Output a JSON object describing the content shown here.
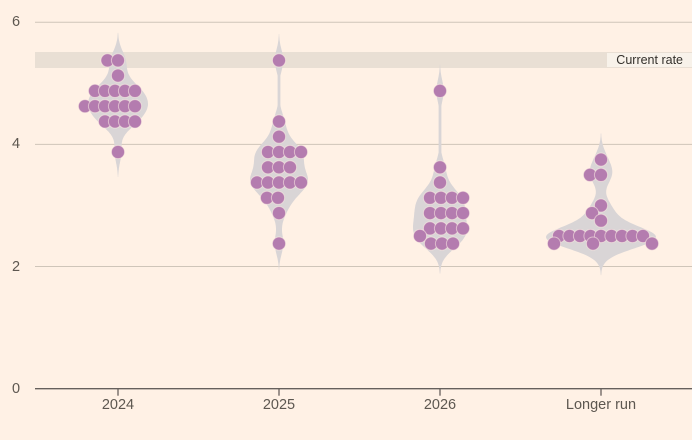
{
  "colors": {
    "background": "#fff1e5",
    "violin_fill": "#d9d5d6",
    "dot": "#b47caf",
    "dot_stroke": "rgba(255,241,229,0.55)",
    "gridline": "#cfc5b9",
    "axis_line": "#66605c",
    "tick_text": "#5d5750",
    "band_fill": "#e9dfd4",
    "band_label_bg": "#f8f2ea",
    "band_label_text": "#33302b"
  },
  "y_axis": {
    "min": 0,
    "max": 6,
    "ticks": [
      0,
      2,
      4,
      6
    ],
    "tick_labels": [
      "6",
      "4",
      "2",
      "0"
    ]
  },
  "current_rate": {
    "label": "Current rate",
    "band_from": 5.25,
    "band_to": 5.5
  },
  "chart_data": {
    "type": "scatter",
    "subtype": "violin-beeswarm",
    "title": "",
    "xlabel": "",
    "ylabel": "",
    "ylim": [
      0,
      6
    ],
    "grid": "horizontal",
    "categories": [
      "2024",
      "2025",
      "2026",
      "Longer run"
    ],
    "annotation": {
      "label": "Current rate",
      "from": 5.25,
      "to": 5.5
    },
    "groups": [
      {
        "label": "2024",
        "rows": [
          {
            "value": 5.375,
            "count": 2,
            "offsets": [
              -10.5,
              0
            ]
          },
          {
            "value": 5.125,
            "count": 1,
            "offsets": [
              0
            ]
          },
          {
            "value": 4.875,
            "count": 5,
            "offsets": [
              -23,
              -13,
              -3,
              7,
              17
            ]
          },
          {
            "value": 4.625,
            "count": 6,
            "offsets": [
              -33,
              -23,
              -13,
              -3,
              7,
              17
            ]
          },
          {
            "value": 4.375,
            "count": 4,
            "offsets": [
              -13,
              -3,
              7,
              17
            ]
          },
          {
            "value": 3.875,
            "count": 1,
            "offsets": [
              0
            ]
          }
        ]
      },
      {
        "label": "2025",
        "rows": [
          {
            "value": 5.375,
            "count": 1,
            "offsets": [
              0
            ]
          },
          {
            "value": 4.375,
            "count": 1,
            "offsets": [
              0
            ]
          },
          {
            "value": 4.125,
            "count": 1,
            "offsets": [
              0
            ]
          },
          {
            "value": 3.875,
            "count": 4,
            "offsets": [
              -11,
              0,
              11,
              22
            ]
          },
          {
            "value": 3.625,
            "count": 3,
            "offsets": [
              -11,
              0,
              11
            ]
          },
          {
            "value": 3.375,
            "count": 5,
            "offsets": [
              -22,
              -11,
              0,
              11,
              22
            ]
          },
          {
            "value": 3.125,
            "count": 2,
            "offsets": [
              -12,
              -1
            ]
          },
          {
            "value": 2.875,
            "count": 1,
            "offsets": [
              0
            ]
          },
          {
            "value": 2.375,
            "count": 1,
            "offsets": [
              0
            ]
          }
        ]
      },
      {
        "label": "2026",
        "rows": [
          {
            "value": 4.875,
            "count": 1,
            "offsets": [
              0
            ]
          },
          {
            "value": 3.625,
            "count": 1,
            "offsets": [
              0
            ]
          },
          {
            "value": 3.375,
            "count": 1,
            "offsets": [
              0
            ]
          },
          {
            "value": 3.125,
            "count": 4,
            "offsets": [
              -10,
              1,
              12,
              23
            ]
          },
          {
            "value": 2.875,
            "count": 4,
            "offsets": [
              -10,
              1,
              12,
              23
            ]
          },
          {
            "value": 2.625,
            "count": 4,
            "offsets": [
              -10,
              1,
              12,
              23
            ]
          },
          {
            "value": 2.5,
            "count": 1,
            "offsets": [
              -20
            ]
          },
          {
            "value": 2.375,
            "count": 3,
            "offsets": [
              -9,
              2,
              13
            ]
          }
        ]
      },
      {
        "label": "Longer run",
        "rows": [
          {
            "value": 3.75,
            "count": 1,
            "offsets": [
              0
            ]
          },
          {
            "value": 3.5,
            "count": 2,
            "offsets": [
              -11,
              0
            ]
          },
          {
            "value": 3.0,
            "count": 1,
            "offsets": [
              0
            ]
          },
          {
            "value": 2.875,
            "count": 1,
            "offsets": [
              -9
            ]
          },
          {
            "value": 2.75,
            "count": 1,
            "offsets": [
              0
            ]
          },
          {
            "value": 2.5,
            "count": 9,
            "offsets": [
              -42,
              -31.5,
              -21,
              -10.5,
              0,
              10.5,
              21,
              31.5,
              42
            ]
          },
          {
            "value": 2.375,
            "count": 3,
            "offsets": [
              -47,
              -8,
              51
            ]
          }
        ]
      }
    ]
  }
}
